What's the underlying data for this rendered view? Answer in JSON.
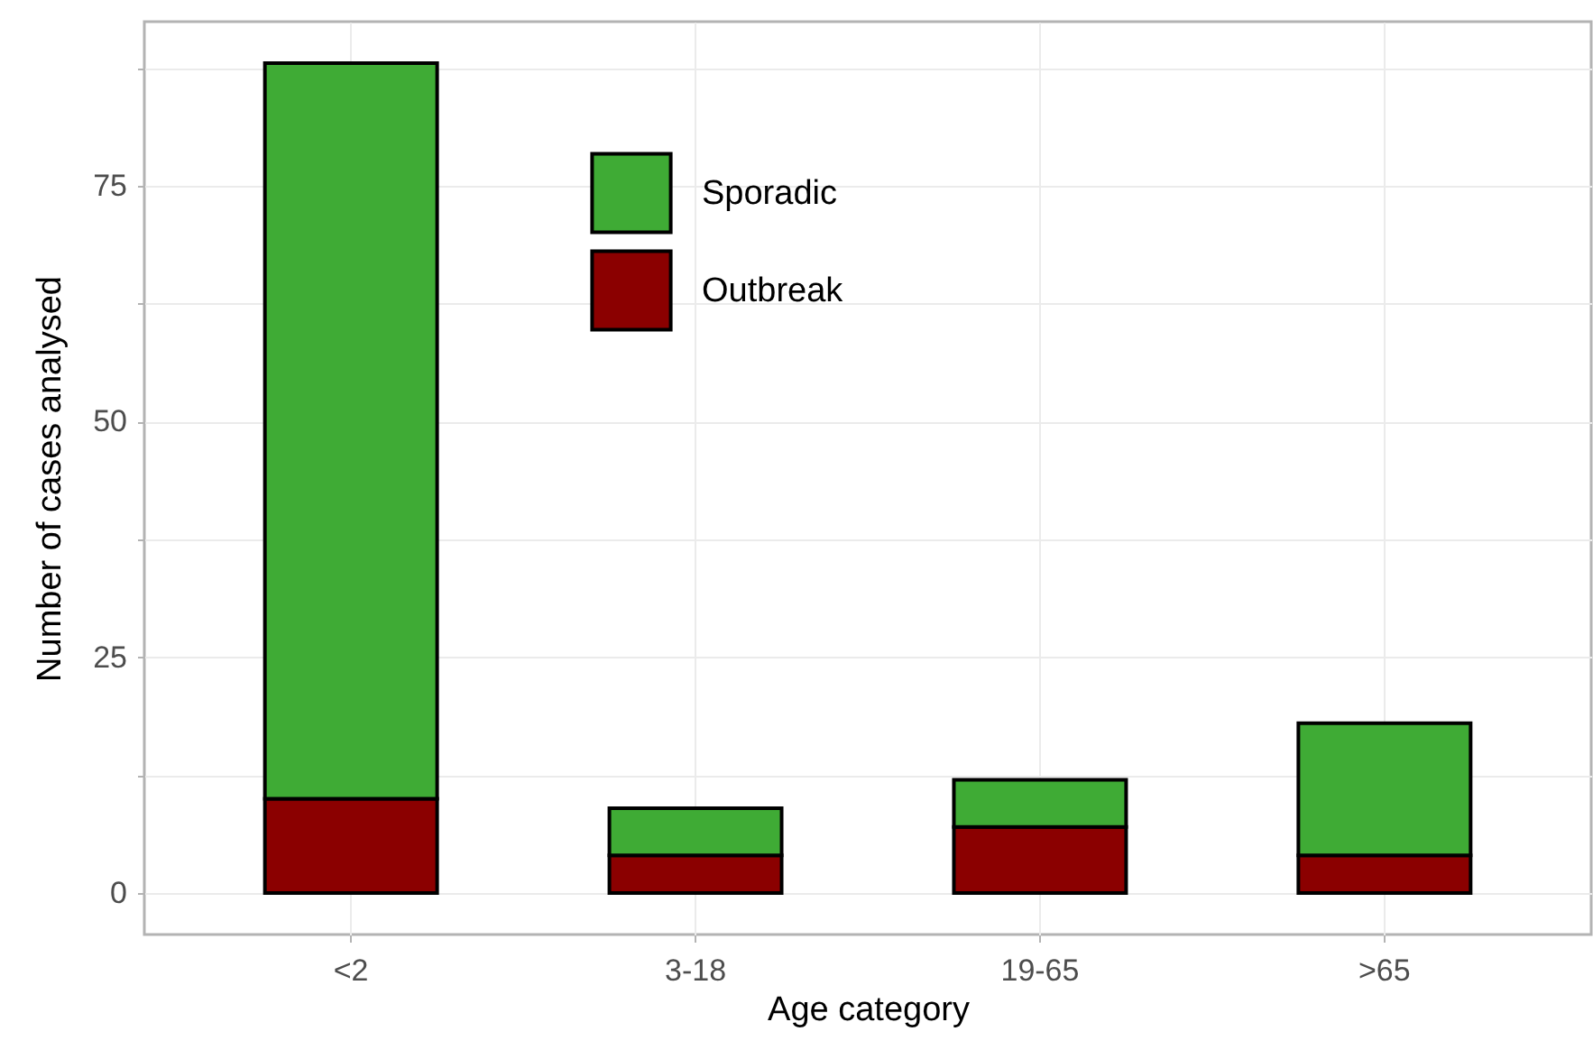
{
  "chart_data": {
    "type": "bar",
    "xlabel": "Age category",
    "ylabel": "Number of cases analysed",
    "categories": [
      "<2",
      "3-18",
      "19-65",
      ">65"
    ],
    "series": [
      {
        "name": "Outbreak",
        "color": "#8b0000",
        "values": [
          10,
          4,
          7,
          4
        ]
      },
      {
        "name": "Sporadic",
        "color": "#3fab35",
        "values": [
          78,
          5,
          5,
          14
        ]
      }
    ],
    "stacked": true,
    "ylim": [
      -4.4,
      92.4
    ],
    "yticks": [
      0,
      {
        "value": 12.5,
        "label": null
      },
      25,
      {
        "value": 37.5,
        "label": null
      },
      50,
      {
        "value": 62.5,
        "label": null
      },
      75,
      {
        "value": 87.5,
        "label": null
      }
    ],
    "grid": true,
    "legend": "top"
  }
}
